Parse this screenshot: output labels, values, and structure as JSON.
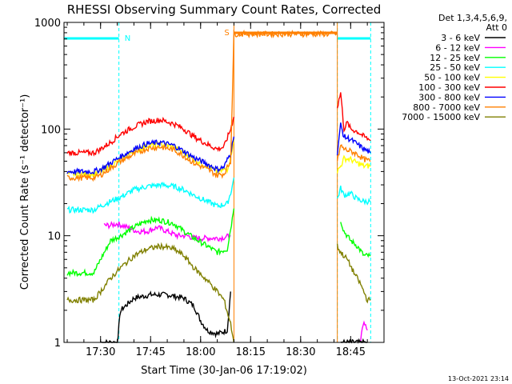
{
  "chart_data": {
    "type": "line",
    "title": "RHESSI Observing Summary Count Rates, Corrected",
    "xlabel": "Start Time (30-Jan-06 17:19:02)",
    "ylabel": "Corrected Count Rate (s⁻¹ detector⁻¹)",
    "yscale": "log",
    "ylim": [
      1,
      1000
    ],
    "xlim": [
      "17:19:02",
      "18:55:00"
    ],
    "x_ticks": [
      "17:30",
      "17:45",
      "18:00",
      "18:15",
      "18:30",
      "18:45"
    ],
    "y_ticks": [
      "1",
      "10",
      "100",
      "1000"
    ],
    "legend_header": [
      "Det 1,3,4,5,6,9,",
      "Att 0"
    ],
    "legend_position": "right",
    "timestamp": "13-Oct-2021 23:14",
    "bar_labels": {
      "night": "N",
      "saa": "S"
    },
    "intervals": {
      "night": [
        [
          "17:19:02",
          "17:35:30"
        ],
        [
          "18:41:00",
          "18:51:00"
        ]
      ],
      "saa": [
        [
          "18:10:00",
          "18:41:00"
        ]
      ]
    },
    "series": [
      {
        "name": "3 - 6 keV",
        "color": "#000000",
        "segA": [
          [
            "17:30",
            1
          ],
          [
            "17:31",
            1
          ],
          [
            "17:32",
            1
          ],
          [
            "17:33",
            1
          ],
          [
            "17:34",
            1
          ],
          [
            "17:35",
            1
          ],
          [
            "17:36",
            2.0
          ],
          [
            "17:40",
            2.6
          ],
          [
            "17:45",
            2.8
          ],
          [
            "17:50",
            2.8
          ],
          [
            "17:55",
            2.6
          ],
          [
            "17:58",
            2.2
          ],
          [
            "18:00",
            1.6
          ],
          [
            "18:02",
            1.3
          ],
          [
            "18:05",
            1.2
          ],
          [
            "18:08",
            1.3
          ],
          [
            "18:09",
            3
          ]
        ],
        "segB": [
          [
            "18:42",
            1
          ],
          [
            "18:44",
            1
          ],
          [
            "18:46",
            1
          ],
          [
            "18:48",
            1
          ],
          [
            "18:50",
            1
          ]
        ]
      },
      {
        "name": "6 - 12 keV",
        "color": "#ff00ff",
        "segA": [
          [
            "17:31",
            12.5
          ],
          [
            "17:33",
            12.5
          ],
          [
            "17:35",
            13
          ],
          [
            "17:38",
            12
          ],
          [
            "17:41",
            11
          ],
          [
            "17:44",
            11
          ],
          [
            "17:47",
            12
          ],
          [
            "17:50",
            11
          ],
          [
            "17:53",
            10
          ],
          [
            "17:56",
            10
          ],
          [
            "17:58",
            9.5
          ],
          [
            "18:00",
            9.5
          ],
          [
            "18:03",
            9.5
          ],
          [
            "18:06",
            9.5
          ],
          [
            "18:09",
            10
          ]
        ],
        "segB": [
          [
            "18:48",
            1.1
          ],
          [
            "18:49",
            1.5
          ],
          [
            "18:50",
            1.3
          ]
        ]
      },
      {
        "name": "12 - 25 keV",
        "color": "#00ff00",
        "segA": [
          [
            "17:20",
            4.5
          ],
          [
            "17:24",
            4.5
          ],
          [
            "17:28",
            4.5
          ],
          [
            "17:30",
            6
          ],
          [
            "17:33",
            9
          ],
          [
            "17:36",
            10
          ],
          [
            "17:40",
            12
          ],
          [
            "17:44",
            14
          ],
          [
            "17:48",
            14
          ],
          [
            "17:52",
            13
          ],
          [
            "17:55",
            11
          ],
          [
            "17:58",
            9.5
          ],
          [
            "18:02",
            8
          ],
          [
            "18:05",
            7
          ],
          [
            "18:08",
            7.5
          ],
          [
            "18:10",
            18
          ]
        ],
        "segB": [
          [
            "18:42",
            14
          ],
          [
            "18:43",
            11
          ],
          [
            "18:45",
            9
          ],
          [
            "18:47",
            8
          ],
          [
            "18:49",
            6.5
          ],
          [
            "18:51",
            6.5
          ]
        ]
      },
      {
        "name": "25 - 50 keV",
        "color": "#00ffff",
        "segA": [
          [
            "17:20",
            17.5
          ],
          [
            "17:24",
            17.5
          ],
          [
            "17:28",
            17.5
          ],
          [
            "17:30",
            19
          ],
          [
            "17:33",
            21
          ],
          [
            "17:36",
            23
          ],
          [
            "17:40",
            27
          ],
          [
            "17:44",
            29
          ],
          [
            "17:48",
            30
          ],
          [
            "17:52",
            29
          ],
          [
            "17:55",
            27
          ],
          [
            "17:58",
            24
          ],
          [
            "18:02",
            21
          ],
          [
            "18:05",
            19
          ],
          [
            "18:08",
            20
          ],
          [
            "18:09",
            25
          ],
          [
            "18:10",
            35
          ]
        ],
        "segB": [
          [
            "18:41",
            22
          ],
          [
            "18:42",
            28
          ],
          [
            "18:43",
            24
          ],
          [
            "18:45",
            25
          ],
          [
            "18:47",
            22
          ],
          [
            "18:49",
            21
          ],
          [
            "18:51",
            21
          ]
        ]
      },
      {
        "name": "50 - 100 keV",
        "color": "#ffff00",
        "segA": [
          [
            "17:20",
            38
          ],
          [
            "17:24",
            38
          ],
          [
            "17:28",
            38
          ],
          [
            "17:30",
            40
          ],
          [
            "17:33",
            45
          ],
          [
            "17:36",
            52
          ],
          [
            "17:40",
            62
          ],
          [
            "17:44",
            70
          ],
          [
            "17:48",
            72
          ],
          [
            "17:52",
            68
          ],
          [
            "17:55",
            60
          ],
          [
            "17:58",
            52
          ],
          [
            "18:02",
            45
          ],
          [
            "18:05",
            40
          ],
          [
            "18:08",
            42
          ],
          [
            "18:09",
            55
          ],
          [
            "18:10",
            80
          ]
        ],
        "segB": [
          [
            "18:41",
            40
          ],
          [
            "18:42",
            45
          ],
          [
            "18:43",
            53
          ],
          [
            "18:45",
            52
          ],
          [
            "18:47",
            48
          ],
          [
            "18:49",
            45
          ],
          [
            "18:51",
            45
          ]
        ]
      },
      {
        "name": "100 - 300 keV",
        "color": "#ff0000",
        "segA": [
          [
            "17:20",
            60
          ],
          [
            "17:24",
            60
          ],
          [
            "17:28",
            60
          ],
          [
            "17:30",
            65
          ],
          [
            "17:33",
            75
          ],
          [
            "17:36",
            90
          ],
          [
            "17:40",
            105
          ],
          [
            "17:44",
            118
          ],
          [
            "17:48",
            122
          ],
          [
            "17:52",
            112
          ],
          [
            "17:55",
            100
          ],
          [
            "17:58",
            85
          ],
          [
            "18:02",
            72
          ],
          [
            "18:05",
            65
          ],
          [
            "18:07",
            68
          ],
          [
            "18:09",
            100
          ],
          [
            "18:10",
            130
          ]
        ],
        "segB": [
          [
            "18:41",
            160
          ],
          [
            "18:42",
            220
          ],
          [
            "18:43",
            100
          ],
          [
            "18:44",
            115
          ],
          [
            "18:45",
            100
          ],
          [
            "18:47",
            95
          ],
          [
            "18:49",
            85
          ],
          [
            "18:51",
            78
          ]
        ]
      },
      {
        "name": "300 - 800 keV",
        "color": "#0000ff",
        "segA": [
          [
            "17:20",
            40
          ],
          [
            "17:24",
            40
          ],
          [
            "17:28",
            40
          ],
          [
            "17:30",
            42
          ],
          [
            "17:33",
            48
          ],
          [
            "17:36",
            55
          ],
          [
            "17:40",
            65
          ],
          [
            "17:44",
            73
          ],
          [
            "17:48",
            75
          ],
          [
            "17:52",
            70
          ],
          [
            "17:55",
            62
          ],
          [
            "17:58",
            54
          ],
          [
            "18:02",
            47
          ],
          [
            "18:05",
            42
          ],
          [
            "18:07",
            44
          ],
          [
            "18:09",
            60
          ],
          [
            "18:10",
            85
          ]
        ],
        "segB": [
          [
            "18:41",
            60
          ],
          [
            "18:42",
            110
          ],
          [
            "18:43",
            85
          ],
          [
            "18:45",
            80
          ],
          [
            "18:47",
            72
          ],
          [
            "18:49",
            65
          ],
          [
            "18:51",
            60
          ]
        ]
      },
      {
        "name": "800 - 7000 keV",
        "color": "#ff8000",
        "segA": [
          [
            "17:20",
            35
          ],
          [
            "17:24",
            35
          ],
          [
            "17:28",
            35
          ],
          [
            "17:30",
            37
          ],
          [
            "17:33",
            43
          ],
          [
            "17:36",
            50
          ],
          [
            "17:40",
            58
          ],
          [
            "17:44",
            66
          ],
          [
            "17:48",
            68
          ],
          [
            "17:52",
            64
          ],
          [
            "17:55",
            56
          ],
          [
            "17:58",
            48
          ],
          [
            "18:02",
            42
          ],
          [
            "18:05",
            37
          ],
          [
            "18:07",
            38
          ],
          [
            "18:09",
            50
          ],
          [
            "18:10",
            780
          ],
          [
            "18:41",
            780
          ]
        ],
        "segB": [
          [
            "18:41",
            50
          ],
          [
            "18:42",
            70
          ],
          [
            "18:43",
            65
          ],
          [
            "18:45",
            62
          ],
          [
            "18:47",
            58
          ],
          [
            "18:49",
            52
          ],
          [
            "18:51",
            50
          ]
        ]
      },
      {
        "name": "7000 - 15000 keV",
        "color": "#808000",
        "segA": [
          [
            "17:20",
            2.5
          ],
          [
            "17:24",
            2.5
          ],
          [
            "17:28",
            2.5
          ],
          [
            "17:30",
            3
          ],
          [
            "17:33",
            4
          ],
          [
            "17:36",
            5
          ],
          [
            "17:40",
            6.5
          ],
          [
            "17:44",
            7.5
          ],
          [
            "17:48",
            8
          ],
          [
            "17:52",
            7.5
          ],
          [
            "17:55",
            6.5
          ],
          [
            "17:58",
            5
          ],
          [
            "18:02",
            3.8
          ],
          [
            "18:05",
            3
          ],
          [
            "18:07",
            2.5
          ],
          [
            "18:09",
            1.5
          ],
          [
            "18:10",
            1
          ]
        ],
        "segB": [
          [
            "18:41",
            8
          ],
          [
            "18:42",
            7
          ],
          [
            "18:44",
            6
          ],
          [
            "18:46",
            4.5
          ],
          [
            "18:48",
            3.5
          ],
          [
            "18:50",
            2.5
          ],
          [
            "18:51",
            2.5
          ]
        ]
      }
    ]
  }
}
